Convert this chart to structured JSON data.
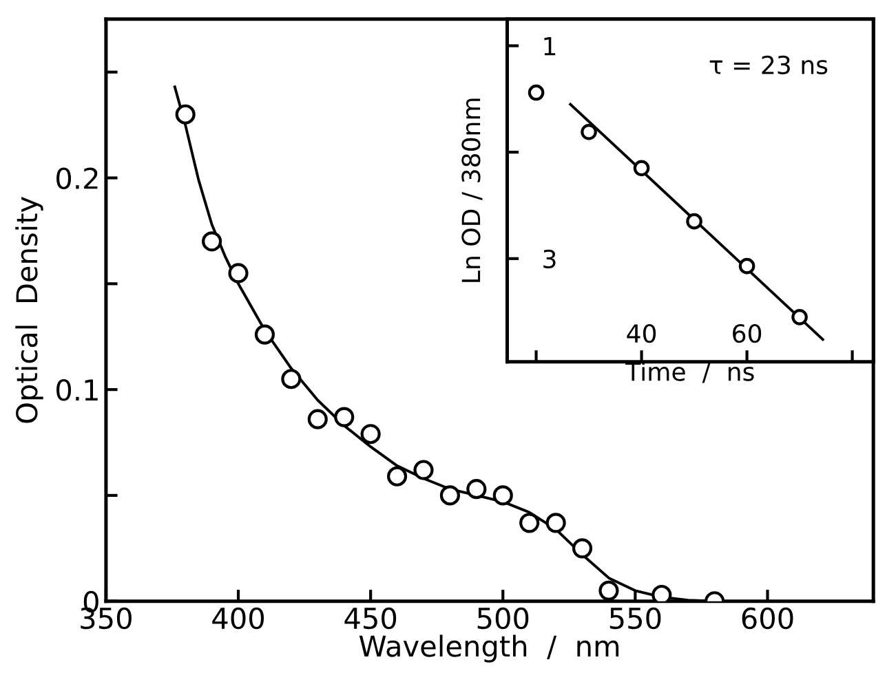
{
  "chart_data": [
    {
      "type": "scatter",
      "xlabel": "Wavelength  /  nm",
      "ylabel": "Optical  Density",
      "xlim": [
        350,
        640
      ],
      "ylim": [
        0,
        0.275
      ],
      "xticks": [
        350,
        400,
        450,
        500,
        550,
        600
      ],
      "yticks": [
        0,
        {
          "value": 0.05,
          "label": null
        },
        0.1,
        {
          "value": 0.15,
          "label": null
        },
        0.2,
        {
          "value": 0.25,
          "label": null
        }
      ],
      "grid": false,
      "legend": false,
      "series": [
        {
          "marker": "circle",
          "color": "#000000",
          "x": [
            380,
            390,
            400,
            410,
            420,
            430,
            440,
            450,
            460,
            470,
            480,
            490,
            500,
            510,
            520,
            530,
            540,
            560,
            580
          ],
          "values": [
            0.23,
            0.17,
            0.155,
            0.126,
            0.105,
            0.086,
            0.087,
            0.079,
            0.059,
            0.062,
            0.05,
            0.053,
            0.05,
            0.037,
            0.037,
            0.025,
            0.005,
            0.003,
            0.0
          ]
        },
        {
          "type": "line",
          "marker": "none",
          "color": "#000000",
          "x": [
            376,
            380,
            385,
            390,
            395,
            400,
            410,
            420,
            430,
            440,
            450,
            460,
            470,
            480,
            490,
            500,
            510,
            520,
            530,
            540,
            550,
            560,
            570,
            580
          ],
          "values": [
            0.243,
            0.225,
            0.199,
            0.178,
            0.163,
            0.15,
            0.128,
            0.11,
            0.095,
            0.083,
            0.073,
            0.064,
            0.058,
            0.053,
            0.05,
            0.047,
            0.042,
            0.034,
            0.022,
            0.011,
            0.005,
            0.002,
            0.0005,
            0.0
          ]
        }
      ]
    },
    {
      "type": "scatter",
      "xlabel": "Time  /  ns",
      "ylabel": "Ln OD / 380nm",
      "xlim": [
        14.5,
        84
      ],
      "ylim": [
        3.97,
        0.75
      ],
      "xticks": [
        {
          "value": 20,
          "label": null
        },
        40,
        60,
        {
          "value": 80,
          "label": null
        }
      ],
      "yticks": [
        1,
        {
          "value": 2,
          "label": null
        },
        3
      ],
      "grid": false,
      "legend": false,
      "annotations": [
        "τ = 23 ns"
      ],
      "series": [
        {
          "marker": "circle",
          "color": "#000000",
          "x": [
            20,
            30,
            40,
            50,
            60,
            70
          ],
          "values": [
            1.44,
            1.81,
            2.15,
            2.65,
            3.07,
            3.55
          ]
        },
        {
          "type": "line",
          "marker": "none",
          "color": "#000000",
          "x": [
            26.5,
            74.4
          ],
          "values": [
            1.55,
            3.76
          ]
        }
      ]
    }
  ]
}
